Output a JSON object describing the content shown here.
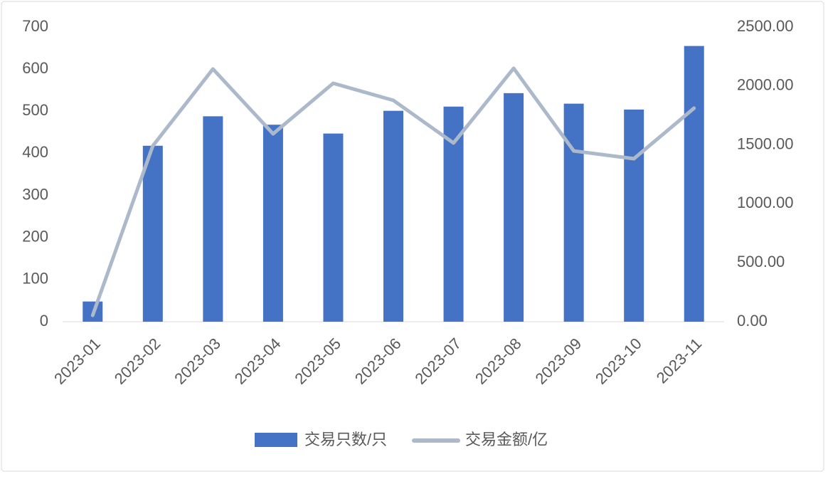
{
  "chart_data": {
    "type": "bar-line",
    "categories": [
      "2023-01",
      "2023-02",
      "2023-03",
      "2023-04",
      "2023-05",
      "2023-06",
      "2023-07",
      "2023-08",
      "2023-09",
      "2023-10",
      "2023-11"
    ],
    "series": [
      {
        "name": "交易只数/只",
        "type": "bar",
        "color": "#4472c4",
        "values": [
          48,
          418,
          488,
          468,
          447,
          501,
          511,
          543,
          518,
          504,
          655
        ]
      },
      {
        "name": "交易金额/亿",
        "type": "line",
        "axis": "y2",
        "color": "#acb9ca",
        "values": [
          54,
          1492,
          2144,
          1594,
          2023,
          1878,
          1516,
          2150,
          1449,
          1383,
          1812
        ]
      }
    ],
    "ylim": [
      0,
      700
    ],
    "yticks": [
      0,
      100,
      200,
      300,
      400,
      500,
      600,
      700
    ],
    "y2lim": [
      0,
      2500
    ],
    "y2ticks": [
      {
        "value": 0,
        "label": "0.00"
      },
      {
        "value": 500,
        "label": "500.00"
      },
      {
        "value": 1000,
        "label": "1000.00"
      },
      {
        "value": 1500,
        "label": "1500.00"
      },
      {
        "value": 2000,
        "label": "2000.00"
      },
      {
        "value": 2500,
        "label": "2500.00"
      }
    ],
    "grid": false,
    "legend": "bottom"
  }
}
